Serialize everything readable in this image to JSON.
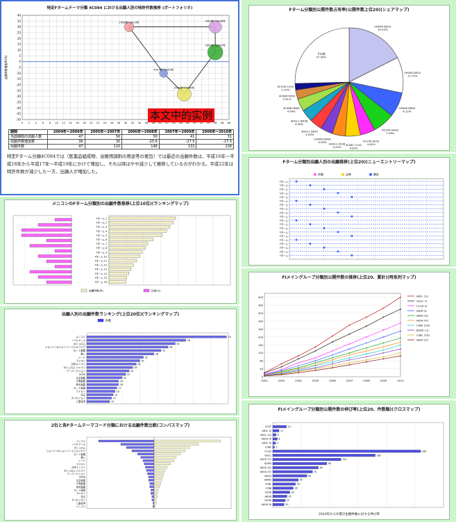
{
  "panels": {
    "p1": {
      "title": "特定Fタームテーマ分類 4C084 における出願人別の特許件数推移 (ポートフォリオ)",
      "overlay": "本文中的实例",
      "chart_type": "bubble",
      "table": {
        "header": [
          "期間",
          "2004年～2006年",
          "2005年～2007年",
          "2006年～2008年",
          "2007年～2009年",
          "2008年～2010年"
        ],
        "rows": [
          [
            "当該期間の出願人数",
            "47",
            "56",
            "56",
            "41",
            "31"
          ],
          [
            "出願件数増加率",
            "36",
            "30",
            "-25.6",
            "-27.5",
            "-17.5"
          ],
          [
            "出願件数",
            "47",
            "110",
            "146",
            "132",
            "136"
          ]
        ]
      },
      "desc": "特定Fターム分類4C084では（医薬品組成物、治療用調剤の用途等の要旨）では最近の出願件数は、平成16年～平成18年から平成17年～平成19年にかけて増加し、それ以降はやや減少して推移しているのがわかる。平成22年は特許件数が減少した一方、出願人が増加した。",
      "xlabel": "出願人数",
      "ylabel": "出願件数増加率(%)",
      "points": [
        {
          "label": "2004年～2006年",
          "x": 47,
          "y": -28
        },
        {
          "label": "2005年～2007年",
          "x": 56,
          "y": 8
        },
        {
          "label": "2006年～2008年",
          "x": 56,
          "y": 30
        },
        {
          "label": "2007年～2009年",
          "x": 41,
          "y": -10
        },
        {
          "label": "2008年～2010年",
          "x": 31,
          "y": 30
        }
      ]
    },
    "p2": {
      "title": "メニコンのFターム分類別の出願件数推移(上位10位)(ランキングマップ)",
      "legend": [
        "出願件数(件)",
        "比率(%)"
      ]
    },
    "p3": {
      "title": "出願人別の出願件数ランキング(上位20位)(ランキングマップ)",
      "legend": [
        "件数"
      ]
    },
    "p4": {
      "title": "2社と各Fタームテーマコード分類における出願件数比較(コンパスマップ)"
    },
    "p5": {
      "title": "Fターム分類別公開件数占有率(公開件数上位20)(シェアマップ)"
    },
    "p6": {
      "title": "Fターム分類別出願人別の出願推移(上位20)(ニューエントリーマップ)",
      "legend": [
        "件数",
        "比率",
        "累計"
      ]
    },
    "p7": {
      "title": "FIメイングループ分類別公開件数の推移(上位20、累計)(時系列マップ)"
    },
    "p8": {
      "title": "FIメイングループ分類別公開件数の伸び率(上位20、件数順)(クロスマップ)",
      "note": "2004年からの累計出願件数に対する伸び率"
    }
  },
  "chart_data": [
    {
      "type": "pie",
      "title": "Fターム分類別公開件数占有率(公開件数上位20)(シェアマップ)",
      "labels": [
        "2H006 DE03",
        "2H006 DE02",
        "2H006 DB03",
        "4C076 AA09",
        "4C076 EE03",
        "4C081 CC01",
        "4H011 AC06",
        "2H006 DD04",
        "4H011 DD07",
        "4H011 DD06",
        "4C088 HB04",
        "4C086 FD03",
        "4C076 CC05",
        "Other"
      ],
      "values": [
        19.33,
        11.73,
        8.12,
        7.18,
        4.92,
        4.92,
        4.29,
        4.09,
        4.09,
        4.09,
        4.09,
        3.01,
        2.15,
        27.95
      ]
    },
    {
      "type": "bar",
      "title": "出願人別の出願件数ランキング(上位20位)(ランキングマップ)",
      "categories": [
        "メニコン",
        "ノバルティス",
        "ボシュロム",
        "ジョンソン&ジョンソン ビジョンケア",
        "ロート製薬",
        "東レ",
        "シード",
        "ライオン",
        "日本メニコン",
        "ボシュロム ジャパン",
        "クーパービジョン",
        "HOYA",
        "大正製薬",
        "千寿製薬",
        "参天製薬",
        "ロート製薬",
        "ライオン",
        "花王",
        "チバビジョン",
        "三菱化学"
      ],
      "values": [
        79,
        56,
        50,
        46,
        42,
        38,
        32,
        30,
        28,
        26,
        24,
        22,
        20,
        18,
        18,
        17,
        16,
        15,
        14,
        13
      ]
    },
    {
      "type": "line",
      "title": "FIメイングループ分類別公開件数の推移(上位20、累計)(時系列マップ)",
      "x": [
        "2002",
        "2003",
        "2004",
        "2005",
        "2006",
        "2007",
        "2008",
        "2009",
        "2010"
      ],
      "ylim": [
        0,
        420
      ],
      "series": [
        {
          "name": "A61L 12/",
          "values": [
            20,
            65,
            105,
            150,
            205,
            260,
            300,
            345,
            400
          ]
        },
        {
          "name": "G02C 7/",
          "values": [
            18,
            50,
            90,
            130,
            175,
            215,
            255,
            300,
            340
          ]
        },
        {
          "name": "C11D 3/",
          "values": [
            12,
            35,
            70,
            95,
            130,
            165,
            200,
            235,
            270
          ]
        },
        {
          "name": "A61K 9/",
          "values": [
            10,
            30,
            55,
            80,
            110,
            140,
            170,
            200,
            230
          ]
        },
        {
          "name": "A61K 31/",
          "values": [
            8,
            25,
            45,
            70,
            95,
            120,
            145,
            170,
            195
          ]
        },
        {
          "name": "A61K 47/",
          "values": [
            8,
            22,
            40,
            60,
            85,
            110,
            130,
            150,
            175
          ]
        },
        {
          "name": "C08F 220/",
          "values": [
            6,
            18,
            35,
            55,
            75,
            95,
            115,
            135,
            160
          ]
        },
        {
          "name": "B29D 11/",
          "values": [
            5,
            15,
            30,
            45,
            65,
            85,
            100,
            120,
            140
          ]
        },
        {
          "name": "C08L 101/",
          "values": [
            4,
            12,
            25,
            40,
            55,
            70,
            85,
            100,
            120
          ]
        },
        {
          "name": "A61P 27/",
          "values": [
            4,
            10,
            20,
            32,
            45,
            60,
            75,
            90,
            105
          ]
        }
      ]
    },
    {
      "type": "bar",
      "title": "FIメイングループ分類別公開件数の伸び率(上位20、件数順)(クロスマップ)",
      "categories": [
        "C07F",
        "A61L 2/",
        "A61L 12/",
        "A61K 9/",
        "A61F 9/",
        "C08F",
        "C11D",
        "G02C",
        "A61P 27/",
        "B29D",
        "A61K 31/",
        "A61K 47/",
        "A61Q",
        "B65D",
        "C08L",
        "C08J",
        "C09K",
        "A61B",
        "G01N",
        "A61K 8/"
      ],
      "values": [
        24,
        11,
        6,
        8,
        5,
        3,
        260,
        180,
        120,
        95,
        80,
        70,
        60,
        45,
        40,
        36,
        30,
        25,
        22,
        20
      ]
    }
  ]
}
